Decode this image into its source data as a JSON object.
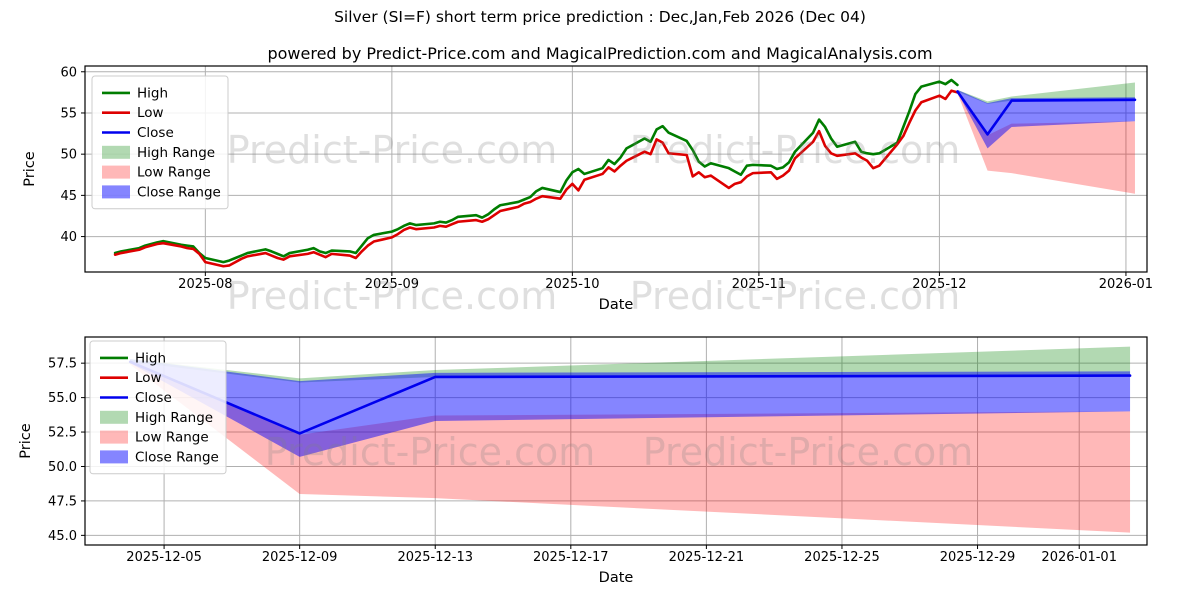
{
  "title": "Silver (SI=F) short term price prediction : Dec,Jan,Feb 2026 (Dec 04)",
  "subtitle": "powered by Predict-Price.com and MagicalPrediction.com and MagicalAnalysis.com",
  "watermark": "Predict-Price.com",
  "colors": {
    "high_line": "#007d00",
    "low_line": "#dd0000",
    "close_line": "#0000ee",
    "high_range_fill": "rgba(0,128,0,0.30)",
    "low_range_fill": "rgba(255,0,0,0.28)",
    "close_range_fill": "rgba(0,0,255,0.48)",
    "grid": "#b0b0b0",
    "frame": "#000000",
    "legend_border": "#cccccc",
    "legend_bg": "rgba(255,255,255,0.85)"
  },
  "chart_data": [
    {
      "name": "history-and-forecast",
      "type": "line",
      "xlabel": "Date",
      "ylabel": "Price",
      "grid": true,
      "legend_position": "upper-left",
      "xlim": [
        "2025-07-12",
        "2026-01-04T12:00:00"
      ],
      "ylim": [
        35.7,
        60.7
      ],
      "yticks": [
        {
          "value": 40,
          "label": "40"
        },
        {
          "value": 45,
          "label": "45"
        },
        {
          "value": 50,
          "label": "50"
        },
        {
          "value": 55,
          "label": "55"
        },
        {
          "value": 60,
          "label": "60"
        }
      ],
      "xticks": [
        {
          "date": "2025-08-01",
          "label": "2025-08"
        },
        {
          "date": "2025-09-01",
          "label": "2025-09"
        },
        {
          "date": "2025-10-01",
          "label": "2025-10"
        },
        {
          "date": "2025-11-01",
          "label": "2025-11"
        },
        {
          "date": "2025-12-01",
          "label": "2025-12"
        },
        {
          "date": "2026-01-01",
          "label": "2026-01"
        }
      ],
      "legend": [
        {
          "label": "High",
          "type": "line",
          "color": "#007d00"
        },
        {
          "label": "Low",
          "type": "line",
          "color": "#dd0000"
        },
        {
          "label": "Close",
          "type": "line",
          "color": "#0000ee"
        },
        {
          "label": "High Range",
          "type": "patch",
          "color": "rgba(0,128,0,0.30)"
        },
        {
          "label": "Low Range",
          "type": "patch",
          "color": "rgba(255,0,0,0.28)"
        },
        {
          "label": "Close Range",
          "type": "patch",
          "color": "rgba(0,0,255,0.48)"
        }
      ],
      "bands": [
        {
          "name": "High Range",
          "color": "rgba(0,128,0,0.30)",
          "x": [
            "2025-12-04",
            "2025-12-09",
            "2025-12-13",
            "2026-01-02T12:00:00"
          ],
          "upper": [
            57.8,
            56.4,
            57.0,
            58.7
          ],
          "lower": [
            57.6,
            56.1,
            56.5,
            56.6
          ]
        },
        {
          "name": "Low Range",
          "color": "rgba(255,0,0,0.28)",
          "x": [
            "2025-12-04",
            "2025-12-09",
            "2025-12-13",
            "2026-01-02T12:00:00"
          ],
          "upper": [
            57.5,
            52.3,
            53.7,
            54.0
          ],
          "lower": [
            57.4,
            48.0,
            47.7,
            45.2
          ]
        },
        {
          "name": "Close Range",
          "color": "rgba(0,0,255,0.48)",
          "x": [
            "2025-12-04",
            "2025-12-09",
            "2025-12-13",
            "2026-01-02T12:00:00"
          ],
          "upper": [
            57.8,
            56.2,
            56.8,
            56.9
          ],
          "lower": [
            57.5,
            50.7,
            53.3,
            54.0
          ]
        }
      ],
      "series": [
        {
          "name": "High",
          "color": "#007d00",
          "x": [
            "2025-07-17",
            "2025-07-18",
            "2025-07-21",
            "2025-07-22",
            "2025-07-23",
            "2025-07-24",
            "2025-07-25",
            "2025-07-28",
            "2025-07-29",
            "2025-07-30",
            "2025-07-31",
            "2025-08-01",
            "2025-08-04",
            "2025-08-05",
            "2025-08-06",
            "2025-08-07",
            "2025-08-08",
            "2025-08-11",
            "2025-08-12",
            "2025-08-13",
            "2025-08-14",
            "2025-08-15",
            "2025-08-18",
            "2025-08-19",
            "2025-08-20",
            "2025-08-21",
            "2025-08-22",
            "2025-08-25",
            "2025-08-26",
            "2025-08-27",
            "2025-08-28",
            "2025-08-29",
            "2025-09-01",
            "2025-09-02",
            "2025-09-03",
            "2025-09-04",
            "2025-09-05",
            "2025-09-08",
            "2025-09-09",
            "2025-09-10",
            "2025-09-11",
            "2025-09-12",
            "2025-09-15",
            "2025-09-16",
            "2025-09-17",
            "2025-09-18",
            "2025-09-19",
            "2025-09-22",
            "2025-09-23",
            "2025-09-24",
            "2025-09-25",
            "2025-09-26",
            "2025-09-29",
            "2025-09-30",
            "2025-10-01",
            "2025-10-02",
            "2025-10-03",
            "2025-10-06",
            "2025-10-07",
            "2025-10-08",
            "2025-10-09",
            "2025-10-10",
            "2025-10-13",
            "2025-10-14",
            "2025-10-15",
            "2025-10-16",
            "2025-10-17",
            "2025-10-20",
            "2025-10-21",
            "2025-10-22",
            "2025-10-23",
            "2025-10-24",
            "2025-10-27",
            "2025-10-28",
            "2025-10-29",
            "2025-10-30",
            "2025-10-31",
            "2025-11-03",
            "2025-11-04",
            "2025-11-05",
            "2025-11-06",
            "2025-11-07",
            "2025-11-10",
            "2025-11-11",
            "2025-11-12",
            "2025-11-13",
            "2025-11-14",
            "2025-11-17",
            "2025-11-18",
            "2025-11-19",
            "2025-11-20",
            "2025-11-21",
            "2025-11-24",
            "2025-11-25",
            "2025-11-26",
            "2025-11-27",
            "2025-11-28",
            "2025-12-01",
            "2025-12-02",
            "2025-12-03",
            "2025-12-04"
          ],
          "y": [
            38.0,
            38.2,
            38.6,
            38.9,
            39.1,
            39.3,
            39.45,
            39.0,
            38.9,
            38.8,
            38.0,
            37.4,
            36.9,
            37.1,
            37.4,
            37.7,
            38.0,
            38.45,
            38.2,
            37.9,
            37.6,
            38.0,
            38.4,
            38.6,
            38.2,
            38.0,
            38.3,
            38.2,
            38.0,
            38.9,
            39.8,
            40.2,
            40.6,
            40.9,
            41.3,
            41.6,
            41.4,
            41.6,
            41.8,
            41.7,
            42.0,
            42.4,
            42.6,
            42.3,
            42.7,
            43.3,
            43.8,
            44.2,
            44.5,
            44.8,
            45.5,
            45.9,
            45.4,
            46.8,
            47.8,
            48.2,
            47.6,
            48.3,
            49.3,
            48.8,
            49.6,
            50.7,
            51.9,
            51.5,
            53.0,
            53.4,
            52.6,
            51.6,
            50.5,
            49.1,
            48.5,
            48.9,
            48.3,
            47.9,
            47.5,
            48.6,
            48.7,
            48.6,
            48.2,
            48.4,
            49.0,
            50.3,
            52.6,
            54.2,
            53.3,
            51.9,
            50.9,
            51.5,
            50.3,
            50.1,
            50.0,
            50.1,
            51.4,
            53.3,
            55.2,
            57.3,
            58.2,
            58.8,
            58.5,
            59.0,
            58.4
          ]
        },
        {
          "name": "Low",
          "color": "#dd0000",
          "x": [
            "2025-07-17",
            "2025-07-18",
            "2025-07-21",
            "2025-07-22",
            "2025-07-23",
            "2025-07-24",
            "2025-07-25",
            "2025-07-28",
            "2025-07-29",
            "2025-07-30",
            "2025-07-31",
            "2025-08-01",
            "2025-08-04",
            "2025-08-05",
            "2025-08-06",
            "2025-08-07",
            "2025-08-08",
            "2025-08-11",
            "2025-08-12",
            "2025-08-13",
            "2025-08-14",
            "2025-08-15",
            "2025-08-18",
            "2025-08-19",
            "2025-08-20",
            "2025-08-21",
            "2025-08-22",
            "2025-08-25",
            "2025-08-26",
            "2025-08-27",
            "2025-08-28",
            "2025-08-29",
            "2025-09-01",
            "2025-09-02",
            "2025-09-03",
            "2025-09-04",
            "2025-09-05",
            "2025-09-08",
            "2025-09-09",
            "2025-09-10",
            "2025-09-11",
            "2025-09-12",
            "2025-09-15",
            "2025-09-16",
            "2025-09-17",
            "2025-09-18",
            "2025-09-19",
            "2025-09-22",
            "2025-09-23",
            "2025-09-24",
            "2025-09-25",
            "2025-09-26",
            "2025-09-29",
            "2025-09-30",
            "2025-10-01",
            "2025-10-02",
            "2025-10-03",
            "2025-10-06",
            "2025-10-07",
            "2025-10-08",
            "2025-10-09",
            "2025-10-10",
            "2025-10-13",
            "2025-10-14",
            "2025-10-15",
            "2025-10-16",
            "2025-10-17",
            "2025-10-20",
            "2025-10-21",
            "2025-10-22",
            "2025-10-23",
            "2025-10-24",
            "2025-10-27",
            "2025-10-28",
            "2025-10-29",
            "2025-10-30",
            "2025-10-31",
            "2025-11-03",
            "2025-11-04",
            "2025-11-05",
            "2025-11-06",
            "2025-11-07",
            "2025-11-10",
            "2025-11-11",
            "2025-11-12",
            "2025-11-13",
            "2025-11-14",
            "2025-11-17",
            "2025-11-18",
            "2025-11-19",
            "2025-11-20",
            "2025-11-21",
            "2025-11-24",
            "2025-11-25",
            "2025-11-26",
            "2025-11-27",
            "2025-11-28",
            "2025-12-01",
            "2025-12-02",
            "2025-12-03",
            "2025-12-04"
          ],
          "y": [
            37.8,
            38.0,
            38.4,
            38.7,
            38.9,
            39.1,
            39.2,
            38.8,
            38.6,
            38.5,
            37.9,
            36.9,
            36.4,
            36.5,
            36.9,
            37.3,
            37.6,
            38.0,
            37.7,
            37.4,
            37.2,
            37.6,
            37.9,
            38.1,
            37.8,
            37.5,
            37.9,
            37.7,
            37.4,
            38.2,
            38.9,
            39.4,
            39.9,
            40.3,
            40.8,
            41.1,
            40.9,
            41.1,
            41.3,
            41.2,
            41.5,
            41.8,
            42.0,
            41.8,
            42.1,
            42.6,
            43.1,
            43.6,
            44.0,
            44.2,
            44.6,
            44.9,
            44.6,
            45.7,
            46.4,
            45.6,
            46.9,
            47.6,
            48.4,
            47.9,
            48.6,
            49.2,
            50.3,
            50.0,
            51.8,
            51.4,
            50.1,
            49.9,
            47.3,
            47.8,
            47.2,
            47.4,
            45.9,
            46.4,
            46.6,
            47.3,
            47.7,
            47.8,
            47.0,
            47.4,
            48.0,
            49.5,
            51.5,
            52.8,
            51.0,
            50.1,
            49.8,
            50.1,
            49.6,
            49.2,
            48.3,
            48.6,
            51.2,
            52.2,
            53.8,
            55.3,
            56.3,
            57.1,
            56.7,
            57.7,
            57.5
          ]
        },
        {
          "name": "Close",
          "color": "#0000ee",
          "x": [
            "2025-12-04",
            "2025-12-09",
            "2025-12-13",
            "2026-01-02T12:00:00"
          ],
          "y": [
            57.6,
            52.4,
            56.5,
            56.6
          ]
        }
      ]
    },
    {
      "name": "forecast-detail",
      "type": "area",
      "xlabel": "Date",
      "ylabel": "Price",
      "grid": true,
      "legend_position": "upper-left",
      "xlim": [
        "2025-12-02T16:00:00",
        "2026-01-03T00:00:00"
      ],
      "ylim": [
        44.3,
        59.4
      ],
      "yticks": [
        {
          "value": 45.0,
          "label": "45.0"
        },
        {
          "value": 47.5,
          "label": "47.5"
        },
        {
          "value": 50.0,
          "label": "50.0"
        },
        {
          "value": 52.5,
          "label": "52.5"
        },
        {
          "value": 55.0,
          "label": "55.0"
        },
        {
          "value": 57.5,
          "label": "57.5"
        }
      ],
      "xticks": [
        {
          "date": "2025-12-05",
          "label": "2025-12-05"
        },
        {
          "date": "2025-12-09",
          "label": "2025-12-09"
        },
        {
          "date": "2025-12-13",
          "label": "2025-12-13"
        },
        {
          "date": "2025-12-17",
          "label": "2025-12-17"
        },
        {
          "date": "2025-12-21",
          "label": "2025-12-21"
        },
        {
          "date": "2025-12-25",
          "label": "2025-12-25"
        },
        {
          "date": "2025-12-29",
          "label": "2025-12-29"
        },
        {
          "date": "2026-01-01",
          "label": "2026-01-01"
        }
      ],
      "legend": [
        {
          "label": "High",
          "type": "line",
          "color": "#007d00"
        },
        {
          "label": "Low",
          "type": "line",
          "color": "#dd0000"
        },
        {
          "label": "Close",
          "type": "line",
          "color": "#0000ee"
        },
        {
          "label": "High Range",
          "type": "patch",
          "color": "rgba(0,128,0,0.30)"
        },
        {
          "label": "Low Range",
          "type": "patch",
          "color": "rgba(255,0,0,0.28)"
        },
        {
          "label": "Close Range",
          "type": "patch",
          "color": "rgba(0,0,255,0.48)"
        }
      ],
      "bands": [
        {
          "name": "High Range",
          "color": "rgba(0,128,0,0.30)",
          "x": [
            "2025-12-04",
            "2025-12-09",
            "2025-12-13",
            "2026-01-02T12:00:00"
          ],
          "upper": [
            57.8,
            56.4,
            57.0,
            58.7
          ],
          "lower": [
            57.6,
            56.1,
            56.5,
            56.6
          ]
        },
        {
          "name": "Low Range",
          "color": "rgba(255,0,0,0.28)",
          "x": [
            "2025-12-04",
            "2025-12-09",
            "2025-12-13",
            "2026-01-02T12:00:00"
          ],
          "upper": [
            57.5,
            52.3,
            53.7,
            54.0
          ],
          "lower": [
            57.4,
            48.0,
            47.7,
            45.2
          ]
        },
        {
          "name": "Close Range",
          "color": "rgba(0,0,255,0.48)",
          "x": [
            "2025-12-04",
            "2025-12-09",
            "2025-12-13",
            "2026-01-02T12:00:00"
          ],
          "upper": [
            57.8,
            56.2,
            56.8,
            56.9
          ],
          "lower": [
            57.5,
            50.7,
            53.3,
            54.0
          ]
        }
      ],
      "series": [
        {
          "name": "Close",
          "color": "#0000ee",
          "x": [
            "2025-12-04",
            "2025-12-09",
            "2025-12-13",
            "2026-01-02T12:00:00"
          ],
          "y": [
            57.6,
            52.4,
            56.5,
            56.6
          ]
        }
      ]
    }
  ]
}
